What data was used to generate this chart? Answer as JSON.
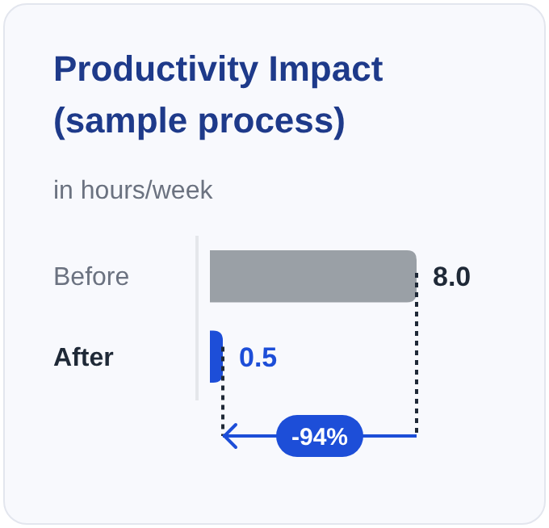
{
  "chart_data": {
    "type": "bar",
    "orientation": "horizontal",
    "title": "Productivity Impact\n(sample process)",
    "subtitle": "in hours/week",
    "categories": [
      "Before",
      "After"
    ],
    "values": [
      8.0,
      0.5
    ],
    "colors": [
      "#9aa0a6",
      "#1d4ed8"
    ],
    "value_labels": [
      "8.0",
      "0.5"
    ],
    "annotations": [
      "-94%"
    ]
  }
}
